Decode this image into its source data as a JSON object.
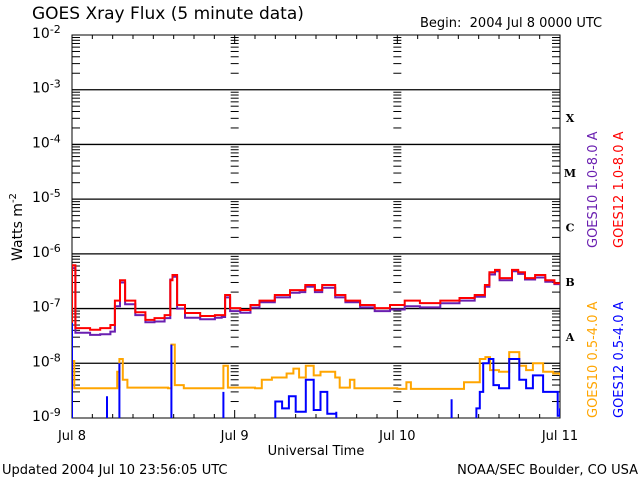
{
  "chart_data": {
    "type": "line",
    "title": "GOES Xray Flux (5 minute data)",
    "subtitle": "Begin:  2004 Jul 8 0000 UTC",
    "xlabel": "Universal Time",
    "ylabel": "Watts m",
    "ylabel_sup": "-2",
    "y_scale": "log",
    "ylim": [
      1e-09,
      0.01
    ],
    "xlim": [
      "2004-07-08T00:00",
      "2004-07-11T00:00"
    ],
    "grid": "horizontal at each decade from 1e-8 to 1e-3",
    "x_ticks": [
      {
        "t": "2004-07-08T00:00",
        "label": "Jul 8"
      },
      {
        "t": "2004-07-09T00:00",
        "label": "Jul 9"
      },
      {
        "t": "2004-07-10T00:00",
        "label": "Jul 10"
      },
      {
        "t": "2004-07-11T00:00",
        "label": "Jul 11"
      }
    ],
    "y_ticks": [
      {
        "exp": -2,
        "base": "10",
        "sup": "-2"
      },
      {
        "exp": -3,
        "base": "10",
        "sup": "-3"
      },
      {
        "exp": -4,
        "base": "10",
        "sup": "-4"
      },
      {
        "exp": -5,
        "base": "10",
        "sup": "-5"
      },
      {
        "exp": -6,
        "base": "10",
        "sup": "-6"
      },
      {
        "exp": -7,
        "base": "10",
        "sup": "-7"
      },
      {
        "exp": -8,
        "base": "10",
        "sup": "-8"
      },
      {
        "exp": -9,
        "base": "10",
        "sup": "-9"
      }
    ],
    "flare_classes": [
      {
        "label": "X",
        "exp": -4
      },
      {
        "label": "M",
        "exp": -5
      },
      {
        "label": "C",
        "exp": -6
      },
      {
        "label": "B",
        "exp": -7
      },
      {
        "label": "A",
        "exp": -8
      }
    ],
    "series": [
      {
        "name": "GOES10 1.0-8.0 A",
        "color": "#6a1fb0",
        "points": [
          [
            "2004-07-08T00:00",
            5.5e-07
          ],
          [
            "2004-07-08T00:30",
            3.6e-08
          ],
          [
            "2004-07-08T02:40",
            3.3e-08
          ],
          [
            "2004-07-08T04:10",
            3.4e-08
          ],
          [
            "2004-07-08T05:40",
            3.8e-08
          ],
          [
            "2004-07-08T06:20",
            1.1e-07
          ],
          [
            "2004-07-08T07:05",
            3e-07
          ],
          [
            "2004-07-08T07:50",
            1.2e-07
          ],
          [
            "2004-07-08T09:20",
            7.6e-08
          ],
          [
            "2004-07-08T10:50",
            5.6e-08
          ],
          [
            "2004-07-08T12:10",
            5.8e-08
          ],
          [
            "2004-07-08T13:40",
            6.7e-08
          ],
          [
            "2004-07-08T14:30",
            3.4e-07
          ],
          [
            "2004-07-08T14:50",
            3.8e-07
          ],
          [
            "2004-07-08T15:30",
            1e-07
          ],
          [
            "2004-07-08T16:40",
            6.8e-08
          ],
          [
            "2004-07-08T18:55",
            6.4e-08
          ],
          [
            "2004-07-08T21:05",
            6.8e-08
          ],
          [
            "2004-07-08T22:05",
            7e-08
          ],
          [
            "2004-07-08T22:35",
            1.6e-07
          ],
          [
            "2004-07-08T23:20",
            9e-08
          ],
          [
            "2004-07-09T00:50",
            8.4e-08
          ],
          [
            "2004-07-09T02:20",
            1.04e-07
          ],
          [
            "2004-07-09T03:40",
            1.3e-07
          ],
          [
            "2004-07-09T05:55",
            1.6e-07
          ],
          [
            "2004-07-09T08:10",
            1.95e-07
          ],
          [
            "2004-07-09T09:35",
            2e-07
          ],
          [
            "2004-07-09T10:25",
            2.5e-07
          ],
          [
            "2004-07-09T11:50",
            2e-07
          ],
          [
            "2004-07-09T12:55",
            2.4e-07
          ],
          [
            "2004-07-09T14:50",
            1.6e-07
          ],
          [
            "2004-07-09T16:20",
            1.3e-07
          ],
          [
            "2004-07-09T18:30",
            1.05e-07
          ],
          [
            "2004-07-09T20:40",
            9e-08
          ],
          [
            "2004-07-09T22:55",
            9.6e-08
          ],
          [
            "2004-07-10T01:05",
            1.1e-07
          ],
          [
            "2004-07-10T03:20",
            1.05e-07
          ],
          [
            "2004-07-10T06:20",
            1.25e-07
          ],
          [
            "2004-07-10T09:10",
            1.4e-07
          ],
          [
            "2004-07-10T11:25",
            1.65e-07
          ],
          [
            "2004-07-10T12:55",
            2.5e-07
          ],
          [
            "2004-07-10T13:35",
            4.2e-07
          ],
          [
            "2004-07-10T14:25",
            4.8e-07
          ],
          [
            "2004-07-10T15:05",
            3.3e-07
          ],
          [
            "2004-07-10T15:50",
            3.3e-07
          ],
          [
            "2004-07-10T16:55",
            4.8e-07
          ],
          [
            "2004-07-10T17:50",
            4.3e-07
          ],
          [
            "2004-07-10T18:50",
            3.4e-07
          ],
          [
            "2004-07-10T20:20",
            3.7e-07
          ],
          [
            "2004-07-10T21:50",
            3.1e-07
          ],
          [
            "2004-07-10T23:10",
            2.8e-07
          ],
          [
            "2004-07-11T00:00",
            2.8e-07
          ]
        ]
      },
      {
        "name": "GOES12 1.0-8.0 A",
        "color": "#ff0000",
        "points": [
          [
            "2004-07-08T00:00",
            6.2e-07
          ],
          [
            "2004-07-08T00:30",
            4.4e-08
          ],
          [
            "2004-07-08T02:40",
            4.1e-08
          ],
          [
            "2004-07-08T04:10",
            4.4e-08
          ],
          [
            "2004-07-08T05:40",
            5e-08
          ],
          [
            "2004-07-08T06:20",
            1.4e-07
          ],
          [
            "2004-07-08T07:05",
            3.3e-07
          ],
          [
            "2004-07-08T07:50",
            1.4e-07
          ],
          [
            "2004-07-08T09:20",
            8.6e-08
          ],
          [
            "2004-07-08T10:50",
            6.2e-08
          ],
          [
            "2004-07-08T12:10",
            6.7e-08
          ],
          [
            "2004-07-08T13:40",
            7.6e-08
          ],
          [
            "2004-07-08T14:30",
            3.3e-07
          ],
          [
            "2004-07-08T14:50",
            4.1e-07
          ],
          [
            "2004-07-08T15:30",
            1.16e-07
          ],
          [
            "2004-07-08T16:40",
            8.3e-08
          ],
          [
            "2004-07-08T18:55",
            7.3e-08
          ],
          [
            "2004-07-08T21:05",
            7.6e-08
          ],
          [
            "2004-07-08T22:05",
            7.6e-08
          ],
          [
            "2004-07-08T22:35",
            1.77e-07
          ],
          [
            "2004-07-08T23:20",
            1.02e-07
          ],
          [
            "2004-07-09T00:50",
            9.4e-08
          ],
          [
            "2004-07-09T02:20",
            1.16e-07
          ],
          [
            "2004-07-09T03:40",
            1.4e-07
          ],
          [
            "2004-07-09T05:55",
            1.77e-07
          ],
          [
            "2004-07-09T08:10",
            2.18e-07
          ],
          [
            "2004-07-09T09:35",
            2.18e-07
          ],
          [
            "2004-07-09T10:25",
            2.7e-07
          ],
          [
            "2004-07-09T11:50",
            2.18e-07
          ],
          [
            "2004-07-09T12:55",
            2.7e-07
          ],
          [
            "2004-07-09T14:50",
            1.77e-07
          ],
          [
            "2004-07-09T16:20",
            1.4e-07
          ],
          [
            "2004-07-09T18:30",
            1.16e-07
          ],
          [
            "2004-07-09T20:40",
            1.02e-07
          ],
          [
            "2004-07-09T22:55",
            1.16e-07
          ],
          [
            "2004-07-10T01:05",
            1.4e-07
          ],
          [
            "2004-07-10T03:20",
            1.26e-07
          ],
          [
            "2004-07-10T06:20",
            1.4e-07
          ],
          [
            "2004-07-10T09:10",
            1.56e-07
          ],
          [
            "2004-07-10T11:25",
            1.77e-07
          ],
          [
            "2004-07-10T12:55",
            2.7e-07
          ],
          [
            "2004-07-10T13:35",
            4.6e-07
          ],
          [
            "2004-07-10T14:25",
            5.1e-07
          ],
          [
            "2004-07-10T15:05",
            3.6e-07
          ],
          [
            "2004-07-10T15:50",
            3.6e-07
          ],
          [
            "2004-07-10T16:55",
            5.1e-07
          ],
          [
            "2004-07-10T17:50",
            4.6e-07
          ],
          [
            "2004-07-10T18:50",
            3.6e-07
          ],
          [
            "2004-07-10T20:20",
            4.1e-07
          ],
          [
            "2004-07-10T21:50",
            3.3e-07
          ],
          [
            "2004-07-10T23:10",
            2.9e-07
          ],
          [
            "2004-07-11T00:00",
            2.9e-07
          ]
        ]
      },
      {
        "name": "GOES10 0.5-4.0 A",
        "color": "#ffa500",
        "points": [
          [
            "2004-07-08T00:00",
            1.1e-08
          ],
          [
            "2004-07-08T00:20",
            3.5e-09
          ],
          [
            "2004-07-08T06:20",
            3.5e-09
          ],
          [
            "2004-07-08T06:40",
            7e-09
          ],
          [
            "2004-07-08T07:00",
            3.5e-09
          ],
          [
            "2004-07-08T07:00",
            1.2e-08
          ],
          [
            "2004-07-08T07:30",
            5e-09
          ],
          [
            "2004-07-08T08:10",
            3.6e-09
          ],
          [
            "2004-07-08T14:10",
            3.5e-09
          ],
          [
            "2004-07-08T14:40",
            2.2e-08
          ],
          [
            "2004-07-08T15:10",
            4e-09
          ],
          [
            "2004-07-08T16:30",
            3.5e-09
          ],
          [
            "2004-07-08T22:00",
            3.5e-09
          ],
          [
            "2004-07-08T22:20",
            9e-09
          ],
          [
            "2004-07-08T23:00",
            3.6e-09
          ],
          [
            "2004-07-09T03:00",
            3.5e-09
          ],
          [
            "2004-07-09T04:00",
            5e-09
          ],
          [
            "2004-07-09T05:30",
            5.5e-09
          ],
          [
            "2004-07-09T07:40",
            6.5e-09
          ],
          [
            "2004-07-09T08:40",
            8e-09
          ],
          [
            "2004-07-09T09:30",
            5.5e-09
          ],
          [
            "2004-07-09T10:30",
            9e-09
          ],
          [
            "2004-07-09T11:40",
            6e-09
          ],
          [
            "2004-07-09T12:40",
            7e-09
          ],
          [
            "2004-07-09T14:50",
            5.5e-09
          ],
          [
            "2004-07-09T15:30",
            3.6e-09
          ],
          [
            "2004-07-09T17:00",
            5e-09
          ],
          [
            "2004-07-09T17:40",
            3.5e-09
          ],
          [
            "2004-07-10T00:00",
            3.4e-09
          ],
          [
            "2004-07-10T01:20",
            4.5e-09
          ],
          [
            "2004-07-10T02:00",
            3.4e-09
          ],
          [
            "2004-07-10T09:30",
            3.4e-09
          ],
          [
            "2004-07-10T09:50",
            4.5e-09
          ],
          [
            "2004-07-10T11:30",
            4.5e-09
          ],
          [
            "2004-07-10T12:10",
            1.2e-08
          ],
          [
            "2004-07-10T13:00",
            1.3e-08
          ],
          [
            "2004-07-10T13:40",
            7.5e-09
          ],
          [
            "2004-07-10T15:00",
            7e-09
          ],
          [
            "2004-07-10T16:30",
            1.6e-08
          ],
          [
            "2004-07-10T18:00",
            9e-09
          ],
          [
            "2004-07-10T19:00",
            7.5e-09
          ],
          [
            "2004-07-10T20:00",
            1e-08
          ],
          [
            "2004-07-10T21:30",
            7e-09
          ],
          [
            "2004-07-10T23:00",
            6.5e-09
          ],
          [
            "2004-07-11T00:00",
            6e-09
          ]
        ]
      },
      {
        "name": "GOES12 0.5-4.0 A",
        "color": "#0000ff",
        "points": [
          [
            "2004-07-08T00:00",
            5.5e-08
          ],
          [
            "2004-07-08T00:20",
            null
          ],
          [
            "2004-07-08T05:00",
            null
          ],
          [
            "2004-07-08T05:10",
            2.5e-09
          ],
          [
            "2004-07-08T05:30",
            null
          ],
          [
            "2004-07-08T07:00",
            1e-08
          ],
          [
            "2004-07-08T07:40",
            null
          ],
          [
            "2004-07-08T14:10",
            null
          ],
          [
            "2004-07-08T14:40",
            2.2e-08
          ],
          [
            "2004-07-08T15:20",
            null
          ],
          [
            "2004-07-08T22:00",
            null
          ],
          [
            "2004-07-08T22:20",
            3e-09
          ],
          [
            "2004-07-08T22:50",
            null
          ],
          [
            "2004-07-09T05:40",
            null
          ],
          [
            "2004-07-09T06:00",
            2e-09
          ],
          [
            "2004-07-09T07:00",
            1.5e-09
          ],
          [
            "2004-07-09T08:00",
            2.5e-09
          ],
          [
            "2004-07-09T09:00",
            1.3e-09
          ],
          [
            "2004-07-09T10:30",
            5e-09
          ],
          [
            "2004-07-09T11:40",
            1.4e-09
          ],
          [
            "2004-07-09T12:40",
            3e-09
          ],
          [
            "2004-07-09T13:40",
            1.2e-09
          ],
          [
            "2004-07-09T15:00",
            1.3e-09
          ],
          [
            "2004-07-09T15:30",
            null
          ],
          [
            "2004-07-10T07:50",
            null
          ],
          [
            "2004-07-10T08:00",
            2.2e-09
          ],
          [
            "2004-07-10T08:40",
            null
          ],
          [
            "2004-07-10T11:30",
            null
          ],
          [
            "2004-07-10T11:40",
            1.5e-09
          ],
          [
            "2004-07-10T12:10",
            3e-09
          ],
          [
            "2004-07-10T12:40",
            1e-08
          ],
          [
            "2004-07-10T13:30",
            1.2e-08
          ],
          [
            "2004-07-10T14:10",
            4e-09
          ],
          [
            "2004-07-10T15:00",
            3.5e-09
          ],
          [
            "2004-07-10T16:30",
            1.2e-08
          ],
          [
            "2004-07-10T18:00",
            5e-09
          ],
          [
            "2004-07-10T19:00",
            3.5e-09
          ],
          [
            "2004-07-10T20:00",
            6e-09
          ],
          [
            "2004-07-10T21:30",
            3e-09
          ],
          [
            "2004-07-10T23:00",
            3e-09
          ],
          [
            "2004-07-10T23:40",
            1.1e-09
          ],
          [
            "2004-07-11T00:00",
            1.5e-09
          ]
        ]
      }
    ],
    "legend_placement": "right, rotated vertical"
  },
  "footer": {
    "updated": "Updated 2004 Jul 10 23:56:05 UTC",
    "credit": "NOAA/SEC Boulder, CO USA"
  }
}
